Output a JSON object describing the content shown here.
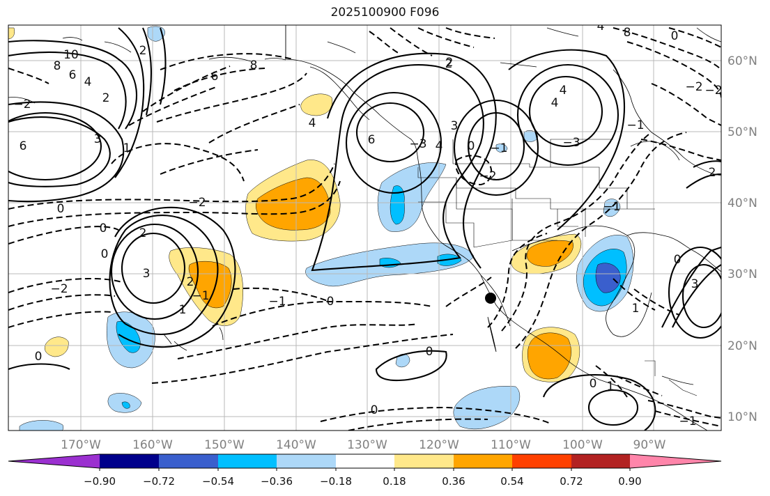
{
  "title": "2025100900 F096",
  "longitude_labels": [
    "170°W",
    "160°W",
    "150°W",
    "140°W",
    "130°W",
    "120°W",
    "110°W",
    "100°W",
    "90°W"
  ],
  "latitude_labels": [
    "60°N",
    "50°N",
    "40°N",
    "30°N",
    "20°N",
    "10°N"
  ],
  "colorbar": {
    "colors": [
      "#9b30d0",
      "#00008b",
      "#3a5fcd",
      "#00bfff",
      "#add8f8",
      "#ffffff",
      "#ffe88a",
      "#ffa500",
      "#ff4000",
      "#b22222",
      "#ff85aa"
    ],
    "tick_labels": [
      "−0.90",
      "−0.72",
      "−0.54",
      "−0.36",
      "−0.18",
      "0.18",
      "0.36",
      "0.54",
      "0.72",
      "0.90"
    ]
  },
  "contour_labels": [
    "10",
    "8",
    "6",
    "4",
    "2",
    "3",
    "1",
    "2",
    "8",
    "6",
    "−2",
    "0",
    "0",
    "2",
    "3",
    "2",
    "1",
    "−2",
    "−1",
    "0",
    "0",
    "0",
    "−1",
    "−2",
    "4",
    "−3",
    "3",
    "4",
    "2",
    "0",
    "−2",
    "−1",
    "0",
    "1",
    "0",
    "−1",
    "−3",
    "1",
    "0",
    "3",
    "4",
    "−1",
    "2",
    "4",
    "6",
    "0",
    "2",
    "−1",
    "6",
    "−2",
    "0",
    "−2",
    "4",
    "8"
  ],
  "marker": "black-dot",
  "color_fill": {
    "negative": "#add8f8",
    "positive": "#ffe88a",
    "strong_negative": "#00bfff",
    "strong_positive": "#ffa500",
    "max_negative": "#3a5fcd"
  }
}
